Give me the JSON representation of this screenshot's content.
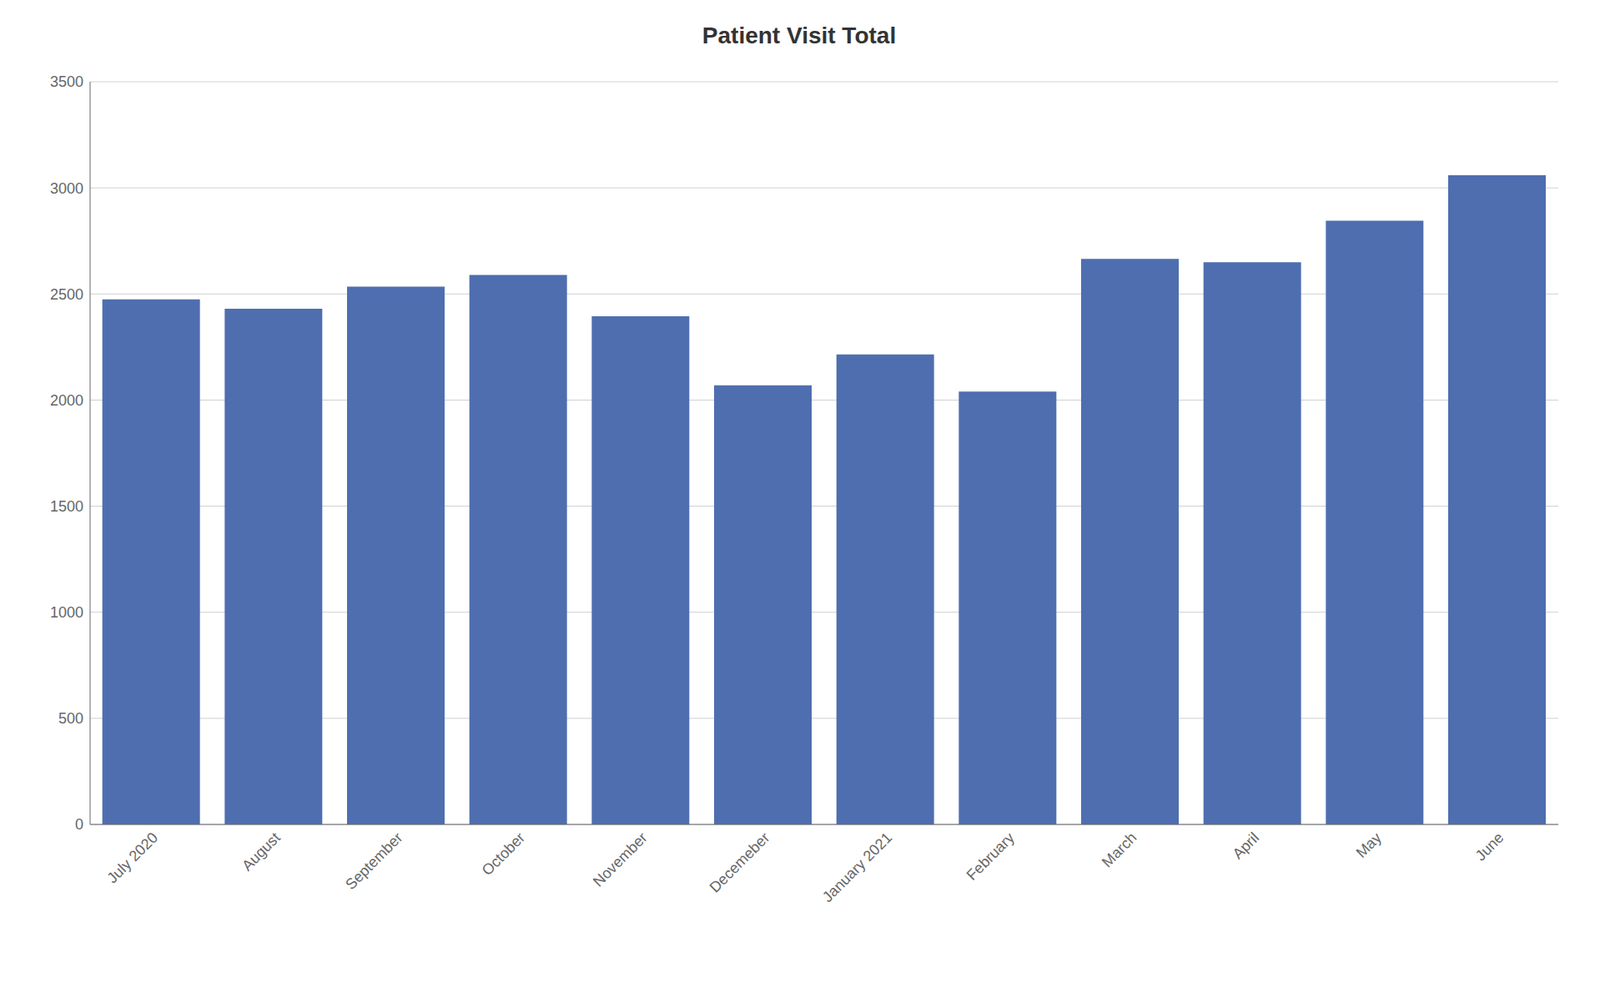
{
  "chart_data": {
    "type": "bar",
    "title": "Patient Visit Total",
    "categories": [
      "July 2020",
      "August",
      "September",
      "October",
      "November",
      "Decemeber",
      "January 2021",
      "February",
      "March",
      "April",
      "May",
      "June"
    ],
    "values": [
      2475,
      2430,
      2535,
      2590,
      2395,
      2070,
      2215,
      2040,
      2665,
      2650,
      2845,
      3060
    ],
    "color": "#4e6eb0",
    "ylim": [
      0,
      3500
    ],
    "yticks": [
      0,
      500,
      1000,
      1500,
      2000,
      2500,
      3000,
      3500
    ],
    "grid": true
  }
}
